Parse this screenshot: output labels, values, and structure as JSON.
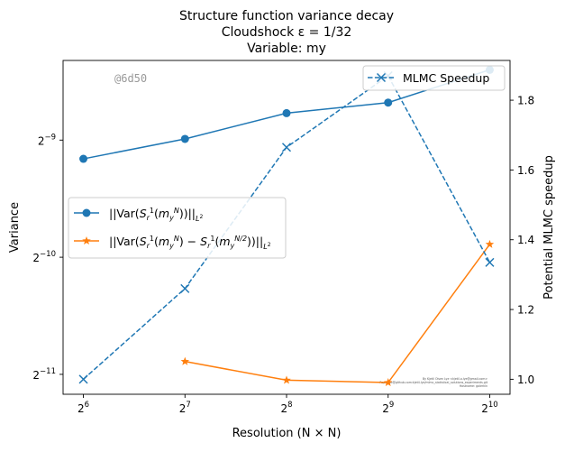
{
  "chart_data": {
    "type": "line",
    "title_lines": [
      "Structure function variance decay",
      "Cloudshock ε = 1/32",
      "Variable: my"
    ],
    "xlabel": "Resolution (N × N)",
    "xscale": "log2",
    "x": [
      64,
      128,
      256,
      512,
      1024
    ],
    "x_tick_labels": [
      {
        "base": "2",
        "exp": "6"
      },
      {
        "base": "2",
        "exp": "7"
      },
      {
        "base": "2",
        "exp": "8"
      },
      {
        "base": "2",
        "exp": "9"
      },
      {
        "base": "2",
        "exp": "10"
      }
    ],
    "left_axis": {
      "label": "Variance",
      "scale": "log2",
      "tick_exponents": [
        -9,
        -10,
        -11
      ],
      "tick_base": "2",
      "ylim_log2": [
        -11.17,
        -8.32
      ]
    },
    "right_axis": {
      "label": "Potential MLMC speedup",
      "ticks": [
        1.0,
        1.2,
        1.4,
        1.6,
        1.8
      ],
      "tick_labels": [
        "1.0",
        "1.2",
        "1.4",
        "1.6",
        "1.8"
      ],
      "ylim": [
        0.957,
        1.914
      ]
    },
    "series": [
      {
        "name": "||Var(S_r^1(m_y^N))||_{L^2}",
        "axis": "left",
        "color": "#1f77b4",
        "marker": "circle",
        "linestyle": "solid",
        "x": [
          64,
          128,
          256,
          512,
          1024
        ],
        "y_log2": [
          -9.16,
          -8.99,
          -8.77,
          -8.68,
          -8.4
        ]
      },
      {
        "name": "||Var(S_r^1(m_y^N) − S_r^1(m_y^{N/2}))||_{L^2}",
        "axis": "left",
        "color": "#ff7f0e",
        "marker": "star",
        "linestyle": "solid",
        "x": [
          128,
          256,
          512,
          1024
        ],
        "y_log2": [
          -10.89,
          -11.05,
          -11.07,
          -9.89
        ]
      },
      {
        "name": "MLMC Speedup",
        "axis": "right",
        "color": "#1f77b4",
        "marker": "x",
        "linestyle": "dashed",
        "x": [
          64,
          128,
          256,
          512,
          1024
        ],
        "y": [
          1.0,
          1.26,
          1.665,
          1.87,
          1.335
        ]
      }
    ],
    "legend_left_placement": "center-left",
    "legend_right_placement": "upper-right",
    "grid": false,
    "annotations": {
      "commit_tag": "@6d50",
      "fine_print": [
        "By Kjetil Olsen Lye <kjetil.o.lye@gmail.com>",
        "Repo: git@github.com:kjetil-lye/mlmc_statistical_solutions_experiments.git",
        "Hostname: galerkin"
      ]
    }
  }
}
